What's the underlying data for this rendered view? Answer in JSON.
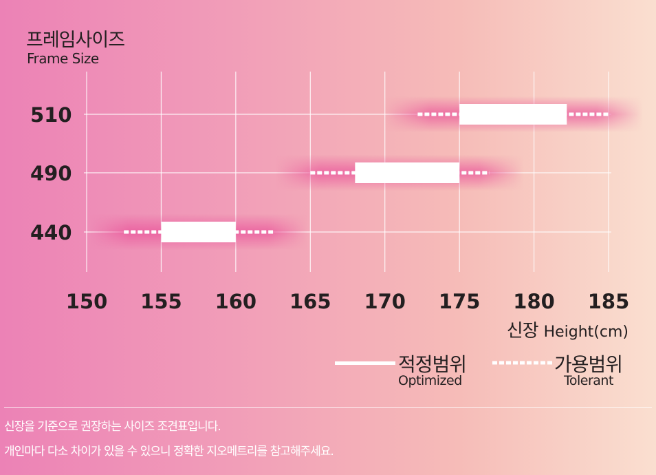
{
  "chart_data": {
    "type": "range",
    "title_ko": "프레임사이즈",
    "title_en": "Frame Size",
    "xlabel_ko": "신장",
    "xlabel_en": "Height(cm)",
    "xlim": [
      150,
      185
    ],
    "x_ticks": [
      "150",
      "155",
      "160",
      "165",
      "170",
      "175",
      "180",
      "185"
    ],
    "categories": [
      "510",
      "490",
      "440"
    ],
    "series": [
      {
        "name": "적정범위",
        "name_en": "Optimized",
        "ranges": [
          [
            175,
            182.2
          ],
          [
            168,
            175
          ],
          [
            155,
            160
          ]
        ]
      },
      {
        "name": "가용범위",
        "name_en": "Tolerant",
        "ranges": [
          [
            172.2,
            185
          ],
          [
            165,
            177
          ],
          [
            152.5,
            162.5
          ]
        ]
      }
    ],
    "colors": {
      "bar": "#ffffff",
      "grid": "#ffffff",
      "band": "#e9559a"
    }
  },
  "notes": [
    "신장을 기준으로 권장하는 사이즈 조견표입니다.",
    "개인마다 다소 차이가 있을 수 있으니 정확한 지오메트리를 참고해주세요."
  ]
}
